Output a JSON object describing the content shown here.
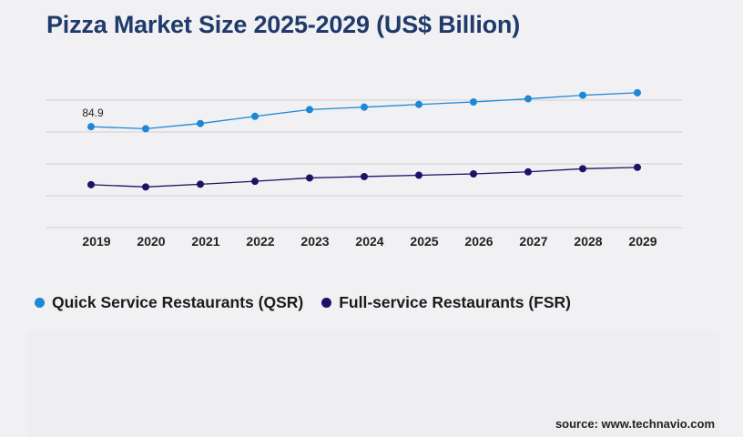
{
  "title": "Pizza Market Size 2025-2029 (US$ Billion)",
  "source": "source: www.technavio.com",
  "colors": {
    "qsr": "#1e88d6",
    "fsr": "#1a1466",
    "grid": "#cfcfd3",
    "title": "#1f3a6b"
  },
  "chart_data": {
    "type": "line",
    "categories": [
      "2019",
      "2020",
      "2021",
      "2022",
      "2023",
      "2024",
      "2025",
      "2026",
      "2027",
      "2028",
      "2029"
    ],
    "grid": true,
    "legend_position": "bottom-left",
    "y_ticks_shown": false,
    "series": [
      {
        "name": "Quick Service Restaurants (QSR)",
        "color": "#1e88d6",
        "values": [
          84.9,
          84.0,
          86.3,
          89.5,
          92.5,
          93.6,
          94.8,
          95.9,
          97.3,
          98.9,
          100.0
        ]
      },
      {
        "name": "Full-service Restaurants (FSR)",
        "color": "#1a1466",
        "values": [
          59.1,
          58.1,
          59.3,
          60.6,
          62.1,
          62.7,
          63.3,
          63.9,
          64.8,
          66.2,
          66.8
        ]
      }
    ],
    "annotations": [
      {
        "series": 0,
        "index": 0,
        "text": "84.9"
      }
    ]
  }
}
